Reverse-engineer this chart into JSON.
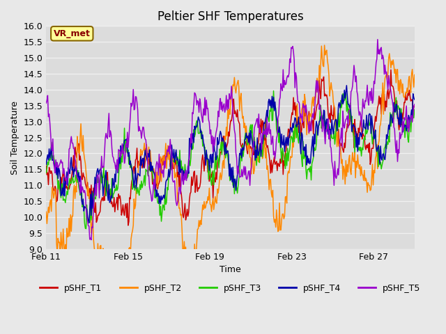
{
  "title": "Peltier SHF Temperatures",
  "xlabel": "Time",
  "ylabel": "Soil Temperature",
  "ylim": [
    9.0,
    16.0
  ],
  "yticks": [
    9.0,
    9.5,
    10.0,
    10.5,
    11.0,
    11.5,
    12.0,
    12.5,
    13.0,
    13.5,
    14.0,
    14.5,
    15.0,
    15.5,
    16.0
  ],
  "xtick_labels": [
    "Feb 11",
    "Feb 15",
    "Feb 19",
    "Feb 23",
    "Feb 27"
  ],
  "xtick_positions": [
    0,
    4,
    8,
    12,
    16
  ],
  "xlim": [
    0,
    18
  ],
  "series_colors": [
    "#cc0000",
    "#ff8800",
    "#22cc00",
    "#0000aa",
    "#9900cc"
  ],
  "series_names": [
    "pSHF_T1",
    "pSHF_T2",
    "pSHF_T3",
    "pSHF_T4",
    "pSHF_T5"
  ],
  "line_width": 1.1,
  "fig_bg_color": "#e8e8e8",
  "plot_bg_color": "#dcdcdc",
  "grid_color": "#f0f0f0",
  "annotation_text": "VR_met",
  "annotation_bg": "#ffff99",
  "annotation_border": "#886600",
  "annotation_text_color": "#880000",
  "title_fontsize": 12,
  "label_fontsize": 9,
  "tick_fontsize": 9,
  "legend_fontsize": 9
}
